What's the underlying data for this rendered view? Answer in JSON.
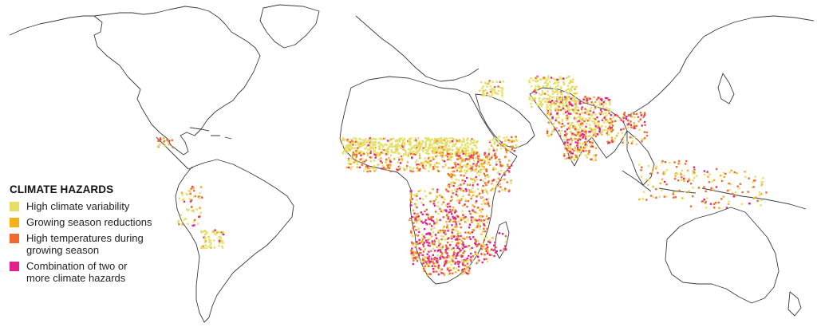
{
  "legend": {
    "title": "CLIMATE HAZARDS",
    "items": [
      {
        "label": "High climate variability",
        "color": "#e6df67",
        "icon": "yellow-square-swatch"
      },
      {
        "label": "Growing season reductions",
        "color": "#f3b21c",
        "icon": "amber-square-swatch"
      },
      {
        "label": "High temperatures during\ngrowing season",
        "color": "#ef6a2d",
        "icon": "orange-square-swatch"
      },
      {
        "label": "Combination of two or\nmore climate hazards",
        "color": "#e0228a",
        "icon": "magenta-square-swatch"
      }
    ]
  }
}
